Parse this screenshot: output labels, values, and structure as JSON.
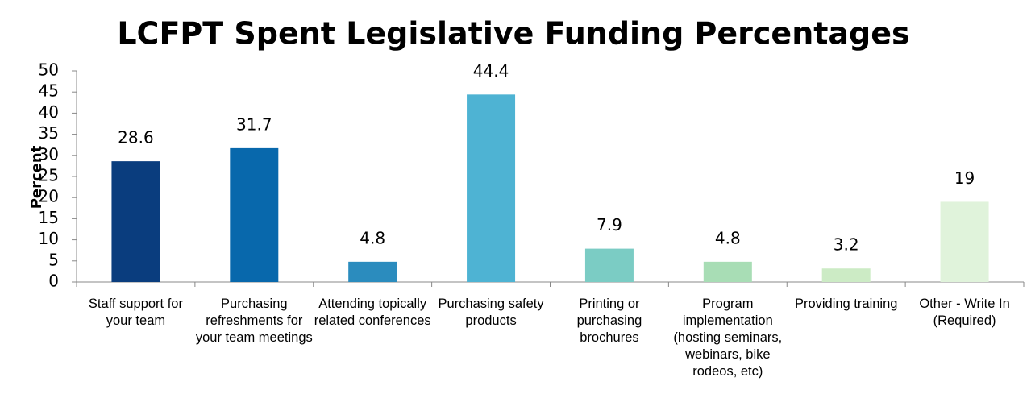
{
  "chart_data": {
    "type": "bar",
    "title": "LCFPT Spent Legislative Funding Percentages",
    "y_label": "Percent",
    "categories": [
      "Staff support for your team",
      "Purchasing refreshments for your team meetings",
      "Attending topically related conferences",
      "Purchasing safety products",
      "Printing or purchasing brochures",
      "Program implementation (hosting seminars, webinars, bike rodeos, etc)",
      "Providing training",
      "Other - Write In (Required)"
    ],
    "values": [
      28.6,
      31.7,
      4.8,
      44.4,
      7.9,
      4.8,
      3.2,
      19
    ],
    "colors": [
      "#0a3d7e",
      "#0868ac",
      "#2b8cbe",
      "#4eb3d3",
      "#7bccc4",
      "#a8ddb5",
      "#ccebc5",
      "#e0f3db"
    ],
    "ylim": [
      0,
      50
    ],
    "yticks": [
      0,
      5,
      10,
      15,
      20,
      25,
      30,
      35,
      40,
      45,
      50
    ],
    "grid": false
  }
}
